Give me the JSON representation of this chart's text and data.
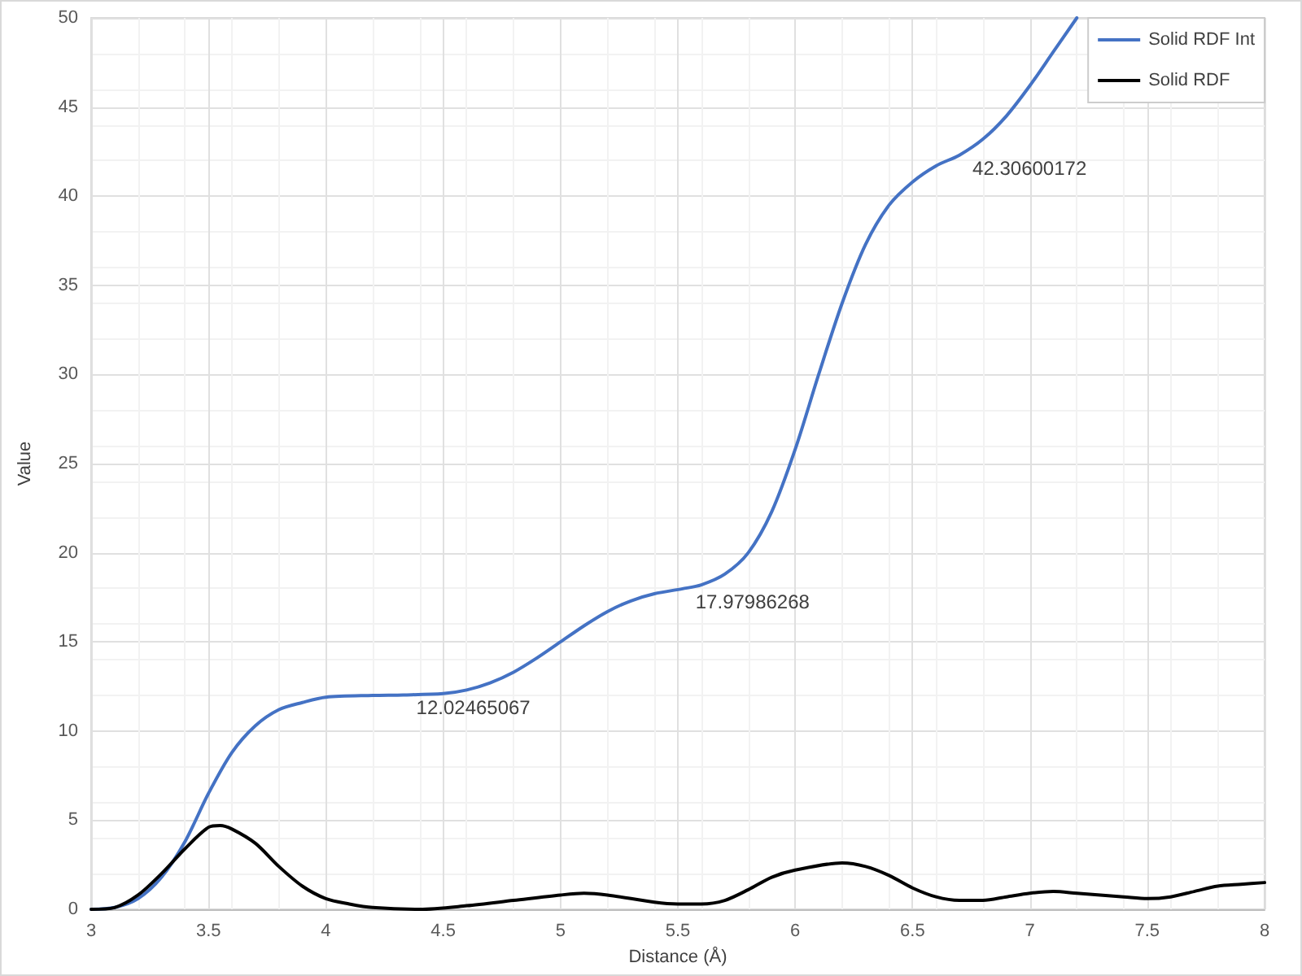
{
  "chart_data": {
    "type": "line",
    "xlabel": "Distance (Å)",
    "ylabel": "Value",
    "xlim": [
      3,
      8
    ],
    "xticks": [
      3,
      3.5,
      4,
      4.5,
      5,
      5.5,
      6,
      6.5,
      7,
      7.5,
      8
    ],
    "ylim": [
      0,
      50
    ],
    "yticks": [
      0,
      5,
      10,
      15,
      20,
      25,
      30,
      35,
      40,
      45,
      50
    ],
    "grid": true,
    "legend": "top right",
    "marker": "none",
    "line_style": "solid",
    "series": [
      {
        "name": "Solid RDF Int",
        "color": "#4472c4",
        "x": [
          3,
          3.1,
          3.2,
          3.3,
          3.4,
          3.5,
          3.6,
          3.7,
          3.8,
          3.9,
          4,
          4.2,
          4.33,
          4.5,
          4.6,
          4.7,
          4.8,
          4.9,
          5,
          5.1,
          5.2,
          5.3,
          5.4,
          5.52,
          5.6,
          5.7,
          5.8,
          5.9,
          6,
          6.1,
          6.2,
          6.3,
          6.4,
          6.5,
          6.6,
          6.7,
          6.8,
          6.9,
          7,
          7.1,
          7.2
        ],
        "values": [
          0,
          0.1,
          0.6,
          1.8,
          3.8,
          6.5,
          8.8,
          10.3,
          11.2,
          11.6,
          11.9,
          12,
          12.02465067,
          12.1,
          12.3,
          12.7,
          13.3,
          14.1,
          15,
          15.9,
          16.7,
          17.3,
          17.7,
          17.97986268,
          18.2,
          18.8,
          20,
          22.3,
          25.8,
          30,
          34,
          37.3,
          39.5,
          40.8,
          41.7,
          42.30600172,
          43.2,
          44.5,
          46.2,
          48.1,
          50
        ]
      },
      {
        "name": "Solid RDF",
        "color": "#000000",
        "x": [
          3,
          3.1,
          3.2,
          3.3,
          3.4,
          3.5,
          3.55,
          3.6,
          3.7,
          3.8,
          3.9,
          4,
          4.1,
          4.2,
          4.4,
          4.6,
          4.8,
          5,
          5.1,
          5.2,
          5.4,
          5.5,
          5.6,
          5.7,
          5.8,
          5.9,
          6,
          6.2,
          6.3,
          6.4,
          6.5,
          6.6,
          6.7,
          6.8,
          6.9,
          7,
          7.1,
          7.2,
          7.4,
          7.5,
          7.6,
          7.7,
          7.8,
          7.9,
          8
        ],
        "values": [
          0,
          0.1,
          0.8,
          2,
          3.4,
          4.6,
          4.7,
          4.5,
          3.7,
          2.4,
          1.3,
          0.6,
          0.3,
          0.1,
          0,
          0.2,
          0.5,
          0.8,
          0.9,
          0.8,
          0.4,
          0.3,
          0.3,
          0.5,
          1.1,
          1.8,
          2.2,
          2.6,
          2.4,
          1.9,
          1.2,
          0.7,
          0.5,
          0.5,
          0.7,
          0.9,
          1,
          0.9,
          0.7,
          0.6,
          0.7,
          1,
          1.3,
          1.4,
          1.5
        ]
      }
    ],
    "annotations": [
      {
        "text": "12.02465067",
        "x": 4.33,
        "y": 12.02465067
      },
      {
        "text": "17.97986268",
        "x": 5.52,
        "y": 17.97986268
      },
      {
        "text": "42.30600172",
        "x": 6.7,
        "y": 42.30600172
      }
    ]
  }
}
